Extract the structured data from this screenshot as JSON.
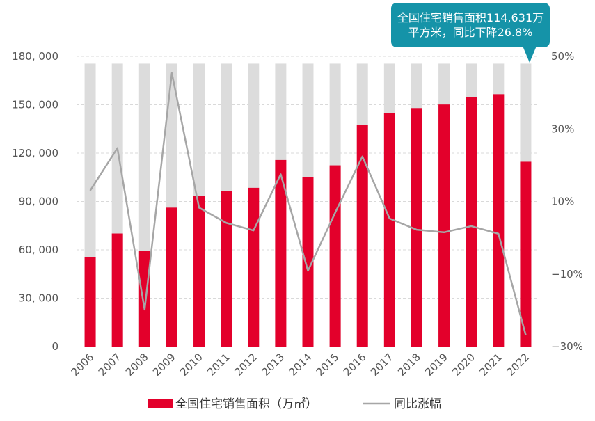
{
  "chart_data": {
    "type": "bar",
    "categories": [
      "2006",
      "2007",
      "2008",
      "2009",
      "2010",
      "2011",
      "2012",
      "2013",
      "2014",
      "2015",
      "2016",
      "2017",
      "2018",
      "2019",
      "2020",
      "2021",
      "2022"
    ],
    "series": [
      {
        "name": "全国住宅销售面积（万㎡）",
        "type": "bar",
        "axis": "left",
        "color": "#e3002b",
        "values": [
          55423,
          70136,
          59280,
          86185,
          93377,
          96528,
          98468,
          115723,
          105188,
          112412,
          137540,
          144789,
          147929,
          150144,
          154878,
          156532,
          114631
        ]
      },
      {
        "name": "同比涨幅",
        "type": "line",
        "axis": "right",
        "color": "#a6a6a6",
        "values": [
          13.0,
          24.7,
          -19.8,
          45.4,
          8.3,
          4.1,
          2.0,
          17.5,
          -9.1,
          6.9,
          22.4,
          5.3,
          2.2,
          1.5,
          3.2,
          1.1,
          -26.8
        ]
      }
    ],
    "background_bar_value": 175500,
    "background_bar_color": "#dcdcdc",
    "y_left": {
      "ticks": [
        "0",
        "30, 000",
        "60, 000",
        "90, 000",
        "120, 000",
        "150, 000",
        "180, 000"
      ],
      "min": 0,
      "max": 180000
    },
    "y_right": {
      "ticks": [
        "−30%",
        "−10%",
        "10%",
        "30%",
        "50%"
      ],
      "min": -30,
      "max": 50
    },
    "grid": true,
    "legend_position": "bottom",
    "annotation": {
      "line1": "全国住宅销售面积114,631万",
      "line2": "平方米，同比下降26.8%",
      "target": "2022"
    }
  }
}
